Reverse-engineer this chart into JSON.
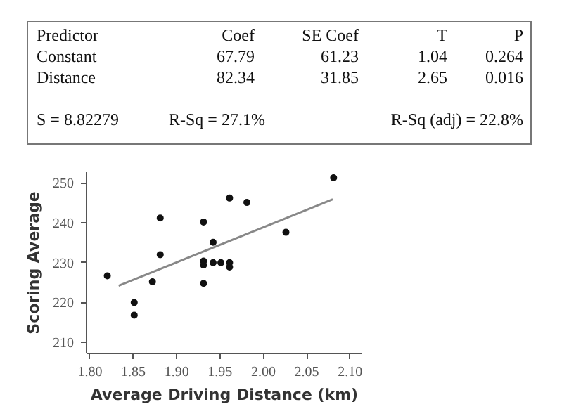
{
  "chart_data": [
    {
      "type": "other",
      "annotations": [
        "Predictor",
        "Coef",
        "SE Coef",
        "T",
        "P",
        "Constant",
        "67.79",
        "61.23",
        "1.04",
        "0.264",
        "Distance",
        "82.34",
        "31.85",
        "2.65",
        "0.016",
        "S = 8.82279",
        "R-Sq = 27.1%",
        "R-Sq (adj) = 22.8%"
      ]
    },
    {
      "type": "scatter",
      "xlabel": "Average Driving Distance (km)",
      "ylabel": "Scoring Average",
      "xlim": [
        1.796,
        2.114
      ],
      "ylim": [
        207.2,
        252.7
      ],
      "xticks": [
        {
          "value": 1.8,
          "label": "1.80"
        },
        1.85,
        {
          "value": 1.9,
          "label": "1.90"
        },
        1.95,
        {
          "value": 2.0,
          "label": "2.00"
        },
        2.05,
        {
          "value": 2.1,
          "label": "2.10"
        }
      ],
      "yticks": [
        210,
        220,
        230,
        240,
        250
      ],
      "grid": false,
      "series": [
        {
          "color": "#111111",
          "marker": "circle",
          "x": [
            1.82,
            1.851,
            1.851,
            1.872,
            1.881,
            1.881,
            1.931,
            1.931,
            1.931,
            1.931,
            1.942,
            1.942,
            1.951,
            1.961,
            1.961,
            1.961,
            1.981,
            2.026,
            2.081
          ],
          "values": [
            226.7,
            220,
            216.8,
            225.2,
            241.2,
            232,
            240.2,
            230.4,
            229.4,
            224.8,
            235.1,
            230,
            230,
            246.2,
            230,
            228.9,
            245.1,
            237.6,
            251.3
          ]
        },
        {
          "type": "line",
          "color": "#888888",
          "x": [
            1.833,
            2.08
          ],
          "values": [
            224.2,
            245.9
          ]
        }
      ]
    }
  ]
}
